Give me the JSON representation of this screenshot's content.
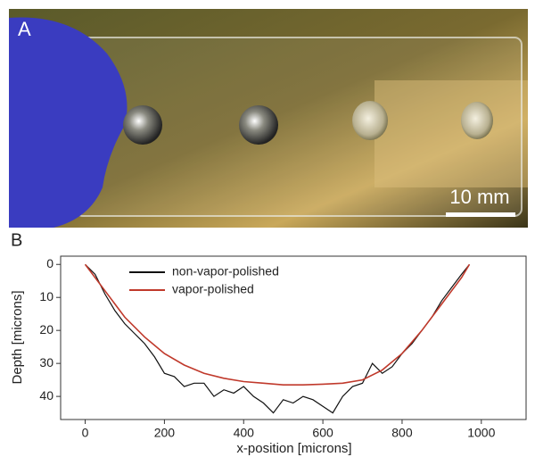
{
  "panel_a": {
    "label": "A",
    "scale_bar": "10 mm"
  },
  "chart_data": {
    "type": "line",
    "panel_label": "B",
    "xlabel": "x-position [microns]",
    "ylabel": "Depth [microns]",
    "xlim": [
      -62,
      1113
    ],
    "ylim": [
      47,
      -2.5
    ],
    "xticks": [
      0,
      200,
      400,
      600,
      800,
      1000
    ],
    "yticks": [
      0,
      10,
      20,
      30,
      40
    ],
    "legend": "upper-center",
    "series": [
      {
        "name": "non-vapor-polished",
        "color": "#111111",
        "x": [
          0,
          25,
          50,
          75,
          100,
          125,
          150,
          175,
          200,
          225,
          250,
          275,
          300,
          325,
          350,
          375,
          400,
          425,
          450,
          475,
          500,
          525,
          550,
          575,
          600,
          625,
          650,
          675,
          700,
          725,
          750,
          775,
          800,
          825,
          850,
          875,
          900,
          925,
          950,
          970
        ],
        "values": [
          0,
          3,
          9,
          14,
          18,
          21,
          24,
          28,
          33,
          34,
          37,
          36,
          36,
          40,
          38,
          39,
          37,
          40,
          42,
          45,
          41,
          42,
          40,
          41,
          43,
          45,
          40,
          37,
          36,
          30,
          33,
          31,
          27,
          24,
          20,
          16,
          11,
          7,
          3,
          0
        ]
      },
      {
        "name": "vapor-polished",
        "color": "#c0392b",
        "x": [
          0,
          50,
          100,
          150,
          200,
          250,
          300,
          350,
          400,
          450,
          500,
          550,
          600,
          650,
          700,
          750,
          800,
          850,
          900,
          950,
          970
        ],
        "values": [
          0,
          8,
          16,
          22,
          27,
          30.5,
          33,
          34.5,
          35.5,
          36,
          36.5,
          36.5,
          36.3,
          36,
          35,
          32,
          27,
          20,
          12,
          4,
          0
        ]
      }
    ]
  }
}
